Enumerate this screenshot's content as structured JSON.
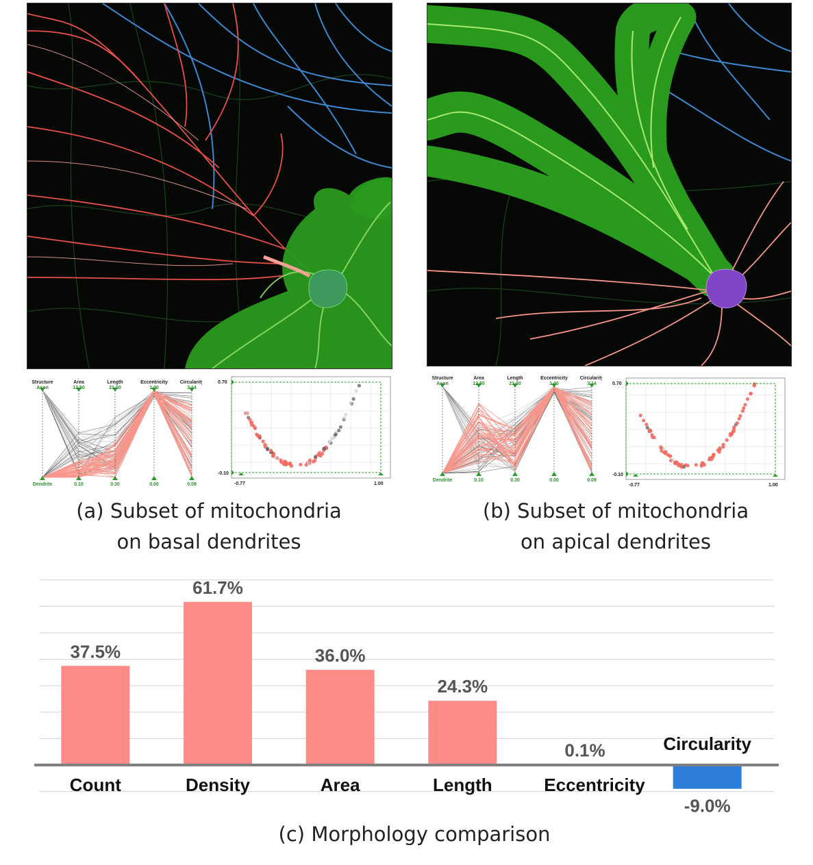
{
  "panel_a": {
    "caption_line1": "(a) Subset of mitochondria",
    "caption_line2": "on basal dendrites",
    "parallel_coords": {
      "axes": [
        "Structure",
        "Area",
        "Length",
        "Eccentricity",
        "Circularity"
      ],
      "top_values": [
        "Axon",
        "12.50",
        "21.00",
        "1.00",
        "3.14"
      ],
      "bottom_values": [
        "Dendrite",
        "0.10",
        "0.30",
        "0.00",
        "0.09"
      ]
    },
    "scatter": {
      "y_top": "0.70",
      "y_bottom": "-0.10",
      "x_left": "-0.77",
      "x_right": "1.00"
    }
  },
  "panel_b": {
    "caption_line1": "(b) Subset of mitochondria",
    "caption_line2": "on apical dendrites",
    "parallel_coords": {
      "axes": [
        "Structure",
        "Area",
        "Length",
        "Eccentricity",
        "Circularity"
      ],
      "top_values": [
        "Axon",
        "12.50",
        "21.00",
        "1.00",
        "3.14"
      ],
      "bottom_values": [
        "Dendrite",
        "0.10",
        "0.30",
        "0.00",
        "0.09"
      ]
    },
    "scatter": {
      "y_top": "0.70",
      "y_bottom": "-0.10",
      "x_left": "-0.77",
      "x_right": "1.00"
    }
  },
  "panel_c": {
    "caption": "(c) Morphology comparison"
  },
  "colors": {
    "positive_bar": "#ff8c87",
    "negative_bar": "#2e7fdb",
    "highlight_green": "#2bb32b",
    "soma_a": "#3d9a5c",
    "soma_b": "#7e45c4",
    "dendrite_pink": "#f9968b",
    "axon_blue": "#3f88d4"
  },
  "chart_data": {
    "type": "bar",
    "categories": [
      "Count",
      "Density",
      "Area",
      "Length",
      "Eccentricity",
      "Circularity"
    ],
    "values": [
      37.5,
      61.7,
      36.0,
      24.3,
      0.1,
      -9.0
    ],
    "value_labels": [
      "37.5%",
      "61.7%",
      "36.0%",
      "24.3%",
      "0.1%",
      "-9.0%"
    ],
    "title": "",
    "xlabel": "",
    "ylabel": "",
    "ylim": [
      -15,
      70
    ],
    "grid": true
  }
}
